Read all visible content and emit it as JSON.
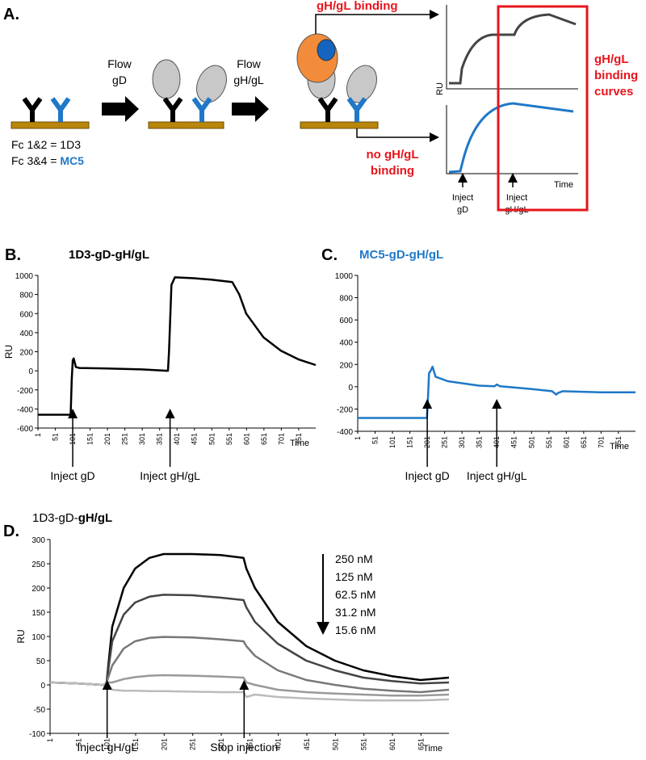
{
  "panel_a": {
    "label": "A.",
    "flow_gd": [
      "Flow",
      "gD"
    ],
    "flow_ghgl": [
      "Flow",
      "gH/gL"
    ],
    "fc12": "Fc 1&2 = 1D3",
    "fc34": "Fc 3&4 = ",
    "fc34_name": "MC5",
    "binding": "gH/gL binding",
    "no_binding": [
      "no gH/gL",
      "binding"
    ],
    "curves_label": [
      "gH/gL",
      "binding",
      "curves"
    ],
    "y_label": "RU",
    "x_label": "Time",
    "inject_gd": [
      "Inject",
      "gD"
    ],
    "inject_ghgl": [
      "Inject",
      "gH/gL"
    ]
  },
  "chart_data": [
    {
      "type": "line",
      "label": "B.",
      "title": "1D3-gD-gH/gL",
      "title_color": "#000000",
      "y_label": "RU",
      "x_label": "Time",
      "xlim": [
        1,
        800
      ],
      "ylim": [
        -600,
        1000
      ],
      "xticks": [
        1,
        51,
        101,
        151,
        201,
        251,
        301,
        351,
        401,
        451,
        501,
        551,
        601,
        651,
        701,
        751
      ],
      "yticks": [
        -600,
        -400,
        -200,
        0,
        200,
        400,
        600,
        800,
        1000
      ],
      "x": [
        1,
        95,
        98,
        101,
        104,
        110,
        120,
        200,
        300,
        375,
        378,
        385,
        395,
        450,
        500,
        560,
        580,
        600,
        650,
        700,
        750,
        800
      ],
      "series": [
        {
          "color": "#000000",
          "values": [
            -460,
            -460,
            -100,
            110,
            130,
            40,
            30,
            25,
            15,
            0,
            200,
            900,
            980,
            970,
            955,
            930,
            800,
            600,
            350,
            210,
            120,
            60
          ]
        }
      ],
      "annotations": [
        {
          "text": "Inject gD",
          "x": 101
        },
        {
          "text": "Inject gH/gL",
          "x": 381
        }
      ]
    },
    {
      "type": "line",
      "label": "C.",
      "title": "MC5-gD-gH/gL",
      "title_color": "#1f78c8",
      "x_label": "Time",
      "xlim": [
        1,
        800
      ],
      "ylim": [
        -400,
        1000
      ],
      "xticks": [
        1,
        51,
        101,
        151,
        201,
        251,
        301,
        351,
        401,
        451,
        501,
        551,
        601,
        651,
        701,
        751
      ],
      "yticks": [
        -400,
        -200,
        0,
        200,
        400,
        600,
        800,
        1000
      ],
      "x": [
        1,
        100,
        200,
        203,
        206,
        212,
        216,
        225,
        260,
        350,
        395,
        401,
        410,
        500,
        560,
        572,
        578,
        590,
        700,
        800
      ],
      "series": [
        {
          "color": "#1f78c8",
          "values": [
            -280,
            -280,
            -280,
            -100,
            120,
            150,
            180,
            90,
            50,
            10,
            5,
            20,
            5,
            -20,
            -40,
            -70,
            -55,
            -40,
            -50,
            -50
          ]
        }
      ],
      "annotations": [
        {
          "text": "Inject gD",
          "x": 201
        },
        {
          "text": "Inject gH/gL",
          "x": 401
        }
      ]
    },
    {
      "type": "line",
      "label": "D.",
      "title": "1D3-gD-",
      "title_bold": "gH/gL",
      "title_color": "#000000",
      "y_label": "RU",
      "x_label": "Time",
      "xlim": [
        1,
        700
      ],
      "ylim": [
        -100,
        300
      ],
      "xticks": [
        1,
        51,
        101,
        151,
        201,
        251,
        301,
        351,
        401,
        451,
        501,
        551,
        601,
        651
      ],
      "yticks": [
        -100,
        -50,
        0,
        50,
        100,
        150,
        200,
        250,
        300
      ],
      "x": [
        1,
        50,
        95,
        100,
        110,
        130,
        150,
        175,
        200,
        250,
        300,
        340,
        345,
        360,
        400,
        450,
        500,
        550,
        600,
        650,
        700
      ],
      "series": [
        {
          "name": "250 nM",
          "color": "#000000",
          "values": [
            5,
            3,
            0,
            5,
            120,
            200,
            240,
            262,
            270,
            270,
            268,
            262,
            240,
            200,
            130,
            80,
            50,
            30,
            18,
            10,
            15
          ]
        },
        {
          "name": "125 nM",
          "color": "#444444",
          "values": [
            5,
            3,
            0,
            5,
            90,
            145,
            170,
            182,
            186,
            185,
            180,
            175,
            160,
            130,
            85,
            50,
            30,
            15,
            8,
            3,
            5
          ]
        },
        {
          "name": "62.5 nM",
          "color": "#777777",
          "values": [
            5,
            3,
            0,
            5,
            40,
            75,
            90,
            97,
            99,
            98,
            94,
            90,
            80,
            60,
            30,
            10,
            0,
            -8,
            -12,
            -15,
            -10
          ]
        },
        {
          "name": "31.2 nM",
          "color": "#999999",
          "values": [
            5,
            3,
            0,
            5,
            5,
            12,
            16,
            19,
            20,
            19,
            17,
            15,
            5,
            0,
            -10,
            -15,
            -18,
            -20,
            -22,
            -22,
            -20
          ]
        },
        {
          "name": "15.6 nM",
          "color": "#bbbbbb",
          "values": [
            5,
            3,
            0,
            5,
            -10,
            -12,
            -12,
            -13,
            -13,
            -14,
            -15,
            -15,
            -25,
            -20,
            -25,
            -28,
            -30,
            -32,
            -32,
            -32,
            -30
          ]
        }
      ],
      "annotations": [
        {
          "text": "Inject gH/gL",
          "x": 101
        },
        {
          "text": "Stop injection",
          "x": 341
        }
      ]
    }
  ]
}
